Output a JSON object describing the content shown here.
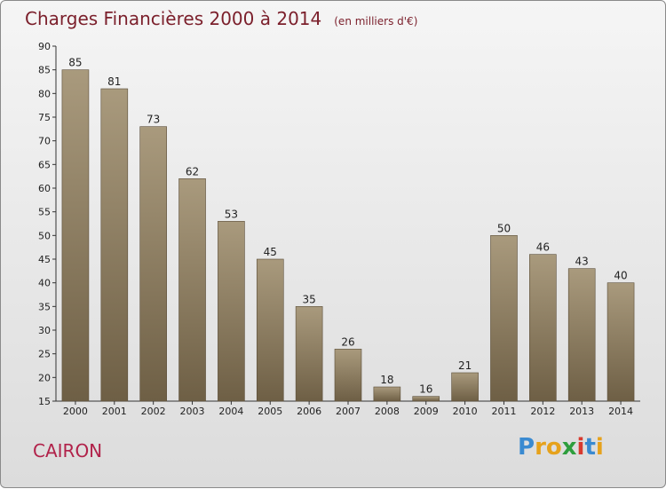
{
  "title": "Charges Financières 2000 à 2014",
  "subtitle": "(en milliers d'€)",
  "commune": "CAIRON",
  "logo": {
    "letters": [
      "P",
      "r",
      "o",
      "x",
      "i",
      "t",
      "i"
    ],
    "colors": [
      "#3a8ad1",
      "#e6a21c",
      "#e6a21c",
      "#2e9e3d",
      "#d83a2f",
      "#3a8ad1",
      "#e6a21c"
    ]
  },
  "colors": {
    "bar_top": "#a99a7d",
    "bar_bottom": "#6e5f45",
    "title": "#7b1f2b",
    "commune": "#b1224a"
  },
  "chart_data": {
    "type": "bar",
    "categories": [
      "2000",
      "2001",
      "2002",
      "2003",
      "2004",
      "2005",
      "2006",
      "2007",
      "2008",
      "2009",
      "2010",
      "2011",
      "2012",
      "2013",
      "2014"
    ],
    "values": [
      85,
      81,
      73,
      62,
      53,
      45,
      35,
      26,
      18,
      16,
      21,
      50,
      46,
      43,
      40
    ],
    "ylim": [
      15,
      90
    ],
    "yticks": [
      15,
      20,
      25,
      30,
      35,
      40,
      45,
      50,
      55,
      60,
      65,
      70,
      75,
      80,
      85,
      90
    ],
    "grid": false,
    "data_labels": true
  }
}
